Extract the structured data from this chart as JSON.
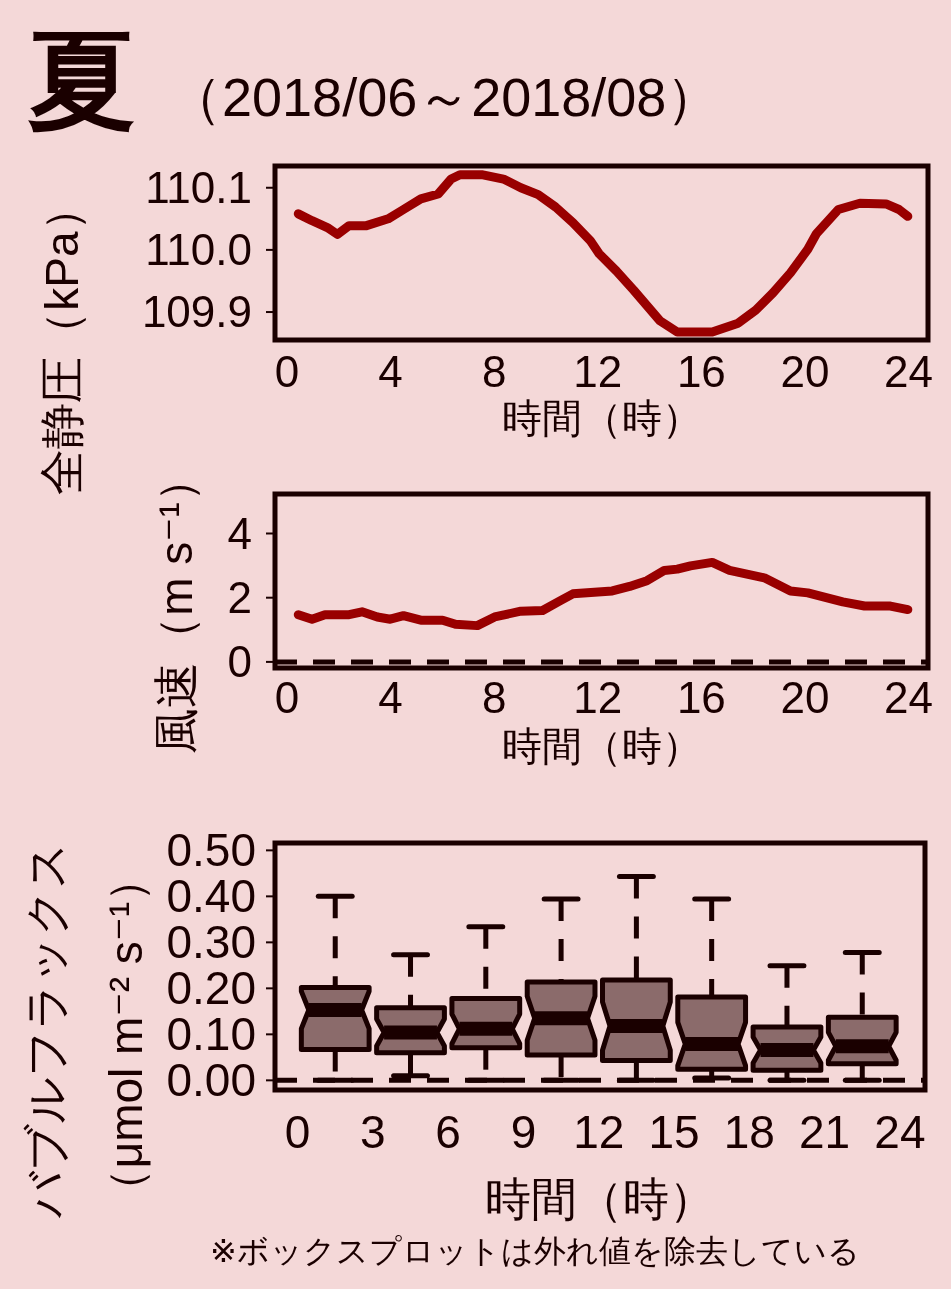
{
  "chart_data": [
    {
      "type": "line",
      "title": "夏",
      "subtitle": "（2018/06～2018/08）",
      "xlabel": "時間（時）",
      "ylabel": "全静圧（kPa）",
      "x": [
        0.44,
        0.97,
        1.56,
        1.95,
        2.4,
        3.07,
        3.91,
        4.5,
        5.17,
        5.84,
        6.34,
        6.68,
        7.52,
        8.36,
        9.03,
        9.7,
        10.37,
        11.04,
        11.71,
        12.05,
        12.72,
        13.39,
        14.4,
        15.07,
        16.42,
        17.42,
        18.1,
        18.77,
        19.44,
        20.11,
        20.44,
        21.29,
        22.12,
        23.13,
        23.63,
        23.97
      ],
      "series": [
        {
          "color": "#990000",
          "values": [
            110.058,
            110.047,
            110.036,
            110.025,
            110.039,
            110.039,
            110.05,
            110.065,
            110.082,
            110.09,
            110.114,
            110.121,
            110.121,
            110.114,
            110.1,
            110.089,
            110.069,
            110.044,
            110.015,
            109.994,
            109.966,
            109.935,
            109.886,
            109.868,
            109.868,
            109.882,
            109.903,
            109.931,
            109.963,
            110.001,
            110.026,
            110.065,
            110.075,
            110.074,
            110.065,
            110.054
          ]
        }
      ],
      "xlim": [
        -0.46,
        24.75
      ],
      "xticks": [
        0,
        4,
        8,
        12,
        16,
        20,
        24
      ],
      "ylim": [
        109.855,
        110.135
      ],
      "yticks": [
        {
          "value": 109.9,
          "label": "109.9"
        },
        {
          "value": 110.0,
          "label": "110.0"
        },
        {
          "value": 110.1,
          "label": "110.1"
        }
      ],
      "line_style": "solid",
      "grid": false
    },
    {
      "type": "line",
      "xlabel": "時間（時）",
      "ylabel": "風速（m s⁻¹）",
      "x": [
        0.44,
        0.97,
        1.47,
        2.4,
        2.9,
        3.49,
        3.99,
        4.5,
        5.17,
        6.01,
        6.51,
        7.35,
        8.02,
        9.03,
        9.87,
        10.54,
        11.04,
        12.56,
        13.23,
        13.9,
        14.57,
        15.07,
        15.58,
        16.42,
        17.09,
        18.43,
        19.44,
        20.11,
        21.46,
        22.3,
        23.3,
        23.97
      ],
      "series": [
        {
          "color": "#990000",
          "values": [
            1.47,
            1.33,
            1.47,
            1.47,
            1.56,
            1.4,
            1.33,
            1.44,
            1.3,
            1.3,
            1.17,
            1.13,
            1.4,
            1.58,
            1.6,
            1.9,
            2.12,
            2.21,
            2.35,
            2.53,
            2.85,
            2.89,
            2.99,
            3.1,
            2.85,
            2.62,
            2.21,
            2.15,
            1.87,
            1.74,
            1.74,
            1.63
          ]
        }
      ],
      "xlim": [
        -0.46,
        24.75
      ],
      "xticks": [
        0,
        4,
        8,
        12,
        16,
        20,
        24
      ],
      "ylim": [
        -0.19,
        5.23
      ],
      "yticks": [
        0,
        2,
        4
      ],
      "ref_lines": [
        {
          "axis": "y",
          "value": 0,
          "color": "#1a0000",
          "line_style": "dashed"
        }
      ],
      "line_style": "solid",
      "grid": false
    },
    {
      "type": "box",
      "xlabel": "時間（時）",
      "ylabel": "バブルフラックス（μmol m⁻² s⁻¹）",
      "x": [
        1.5,
        4.5,
        7.5,
        10.5,
        13.5,
        16.5,
        19.5,
        22.5
      ],
      "color": "#8b6b6b",
      "boxes": [
        {
          "low": 0.0,
          "q1": 0.067,
          "median": 0.153,
          "q3": 0.202,
          "high": 0.4
        },
        {
          "low": 0.01,
          "q1": 0.06,
          "median": 0.104,
          "q3": 0.158,
          "high": 0.273
        },
        {
          "low": 0.0,
          "q1": 0.071,
          "median": 0.112,
          "q3": 0.178,
          "high": 0.334
        },
        {
          "low": 0.0,
          "q1": 0.055,
          "median": 0.135,
          "q3": 0.214,
          "high": 0.394
        },
        {
          "low": 0.0,
          "q1": 0.043,
          "median": 0.118,
          "q3": 0.218,
          "high": 0.443
        },
        {
          "low": 0.005,
          "q1": 0.024,
          "median": 0.079,
          "q3": 0.181,
          "high": 0.394
        },
        {
          "low": 0.0,
          "q1": 0.022,
          "median": 0.066,
          "q3": 0.116,
          "high": 0.249
        },
        {
          "low": 0.0,
          "q1": 0.036,
          "median": 0.074,
          "q3": 0.137,
          "high": 0.278
        }
      ],
      "xlim": [
        -0.9,
        25
      ],
      "xticks": [
        0,
        3,
        6,
        9,
        12,
        15,
        18,
        21,
        24
      ],
      "ylim": [
        -0.021,
        0.516
      ],
      "yticks": [
        {
          "value": 0,
          "label": "0.00"
        },
        {
          "value": 0.1,
          "label": "0.10"
        },
        {
          "value": 0.2,
          "label": "0.20"
        },
        {
          "value": 0.3,
          "label": "0.30"
        },
        {
          "value": 0.4,
          "label": "0.40"
        },
        {
          "value": 0.5,
          "label": "0.50"
        }
      ],
      "ref_lines": [
        {
          "axis": "y",
          "value": 0,
          "color": "#1a0000",
          "line_style": "dashed"
        }
      ],
      "annotations": [
        "※ボックスプロットは外れ値を除去している"
      ],
      "grid": false
    }
  ]
}
